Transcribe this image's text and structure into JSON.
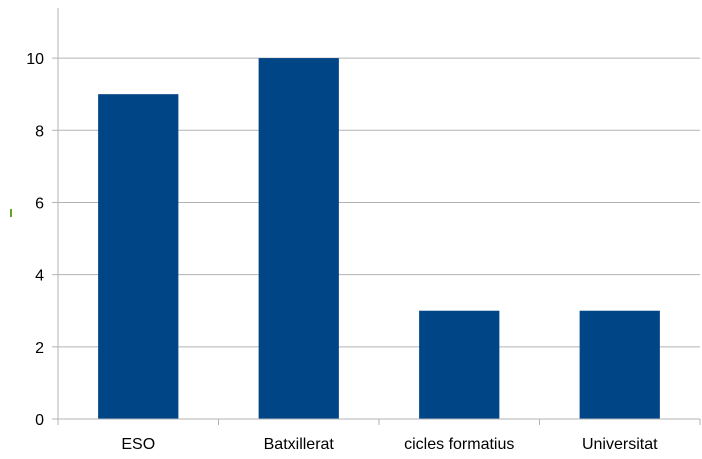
{
  "chart_data": {
    "type": "bar",
    "categories": [
      "ESO",
      "Batxillerat",
      "cicles formatius",
      "Universitat"
    ],
    "values": [
      9,
      10,
      3,
      3
    ],
    "ylim": [
      0,
      11
    ],
    "yticks": [
      0,
      2,
      4,
      6,
      8,
      10
    ],
    "grid": true,
    "legend": "none"
  },
  "colors": {
    "bar": "#004586",
    "grid": "#b3b3b3",
    "axis": "#b3b3b3",
    "marker": "#5fa81e"
  }
}
